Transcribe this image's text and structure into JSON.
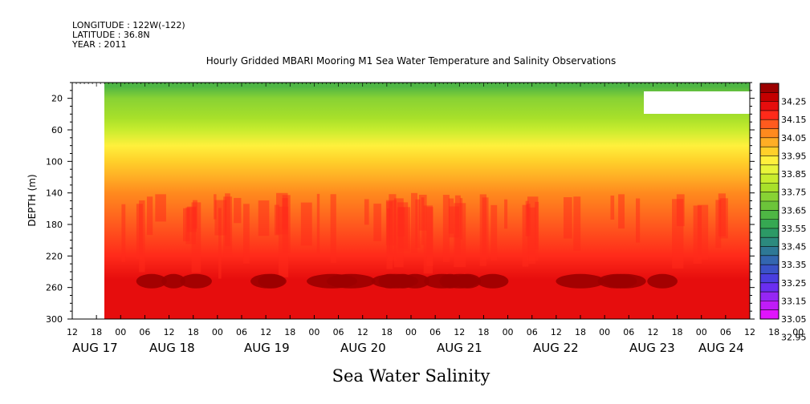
{
  "header": {
    "lines": [
      "LONGITUDE : 122W(-122)",
      "LATITUDE : 36.8N",
      "YEAR : 2011"
    ]
  },
  "chart_data": {
    "type": "heatmap",
    "title": "Hourly Gridded MBARI Mooring M1 Sea Water Temperature and Salinity Observations",
    "xlabel": "Sea Water Salinity",
    "ylabel": "DEPTH (m)",
    "ylim": [
      300,
      0
    ],
    "y_ticks": [
      20,
      60,
      100,
      140,
      180,
      220,
      260,
      300
    ],
    "x_hour_ticks": [
      "12",
      "18",
      "00",
      "06",
      "12",
      "18",
      "00",
      "06",
      "12",
      "18",
      "00",
      "06",
      "12",
      "18",
      "00",
      "06",
      "12",
      "18",
      "00",
      "06",
      "12",
      "18",
      "00",
      "06",
      "12",
      "18",
      "00",
      "06",
      "12",
      "18",
      "00",
      "06"
    ],
    "x_day_labels": [
      "AUG 17",
      "AUG 18",
      "AUG 19",
      "AUG 20",
      "AUG 21",
      "AUG 22",
      "AUG 23",
      "AUG 24"
    ],
    "data_start_time": "AUG 17 18:00",
    "depth_profile": [
      {
        "depth": 5,
        "value": 33.55
      },
      {
        "depth": 20,
        "value": 33.7
      },
      {
        "depth": 45,
        "value": 33.72
      },
      {
        "depth": 60,
        "value": 33.8
      },
      {
        "depth": 80,
        "value": 33.88
      },
      {
        "depth": 100,
        "value": 33.95
      },
      {
        "depth": 120,
        "value": 34.02
      },
      {
        "depth": 140,
        "value": 34.08
      },
      {
        "depth": 180,
        "value": 34.13
      },
      {
        "depth": 220,
        "value": 34.2
      },
      {
        "depth": 250,
        "value": 34.26
      },
      {
        "depth": 300,
        "value": 34.26
      }
    ],
    "colorbar": {
      "labels": [
        "34.25",
        "34.15",
        "34.05",
        "33.95",
        "33.85",
        "33.75",
        "33.65",
        "33.55",
        "33.45",
        "33.35",
        "33.25",
        "33.15",
        "33.05",
        "32.95"
      ],
      "colors": [
        "#9c0000",
        "#c40000",
        "#e60d0d",
        "#ff2a1a",
        "#ff5a1e",
        "#ff8a1e",
        "#ffae25",
        "#ffd02a",
        "#fff03c",
        "#e8f53a",
        "#c8ec2e",
        "#a8e02a",
        "#88d234",
        "#6cc43a",
        "#4eb644",
        "#36a852",
        "#2c9a66",
        "#2c8a7e",
        "#2e7896",
        "#3366b0",
        "#3a52c8",
        "#4a3ee0",
        "#6a2ef0",
        "#9626f4",
        "#c01cf8",
        "#e014fc"
      ]
    }
  }
}
